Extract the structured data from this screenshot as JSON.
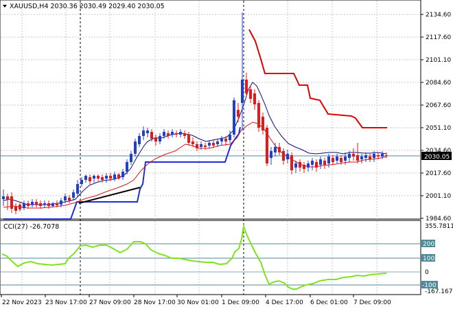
{
  "header": {
    "symbol_info": "XAUUSD,H4  2030.36 2030.49 2029.40 2030.05",
    "menu_icon": "triangle-down-icon"
  },
  "price_axis": {
    "ticks": [
      "2134.60",
      "2117.60",
      "2101.10",
      "2084.60",
      "2067.60",
      "2051.10",
      "2034.60",
      "2017.60",
      "2001.10",
      "1984.60"
    ],
    "current_price": "2030.05"
  },
  "cci_panel": {
    "label": "CCI(27) -26.7078",
    "top_value": "355.7811",
    "bottom_value": "-167.1678",
    "levels": [
      "200",
      "100",
      "0",
      "-100"
    ]
  },
  "time_axis": {
    "labels": [
      "22 Nov 2023",
      "23 Nov 17:00",
      "27 Nov 09:00",
      "28 Nov 17:00",
      "30 Nov 01:00",
      "1 Dec 09:00",
      "4 Dec 17:00",
      "6 Dec 01:00",
      "7 Dec 09:00"
    ]
  },
  "colors": {
    "bull_candle": "#1f3fd1",
    "bear_candle": "#e31a1a",
    "fast_ma": "#0c0c7a",
    "slow_ma": "#d41414",
    "stop_line": "#1a2ed6",
    "resistance_line": "#e00000",
    "cci_line": "#7fe31c",
    "level_lines": "#4f8a9a",
    "grid": "#c0c0c0",
    "price_tag_bg": "#000000"
  }
}
